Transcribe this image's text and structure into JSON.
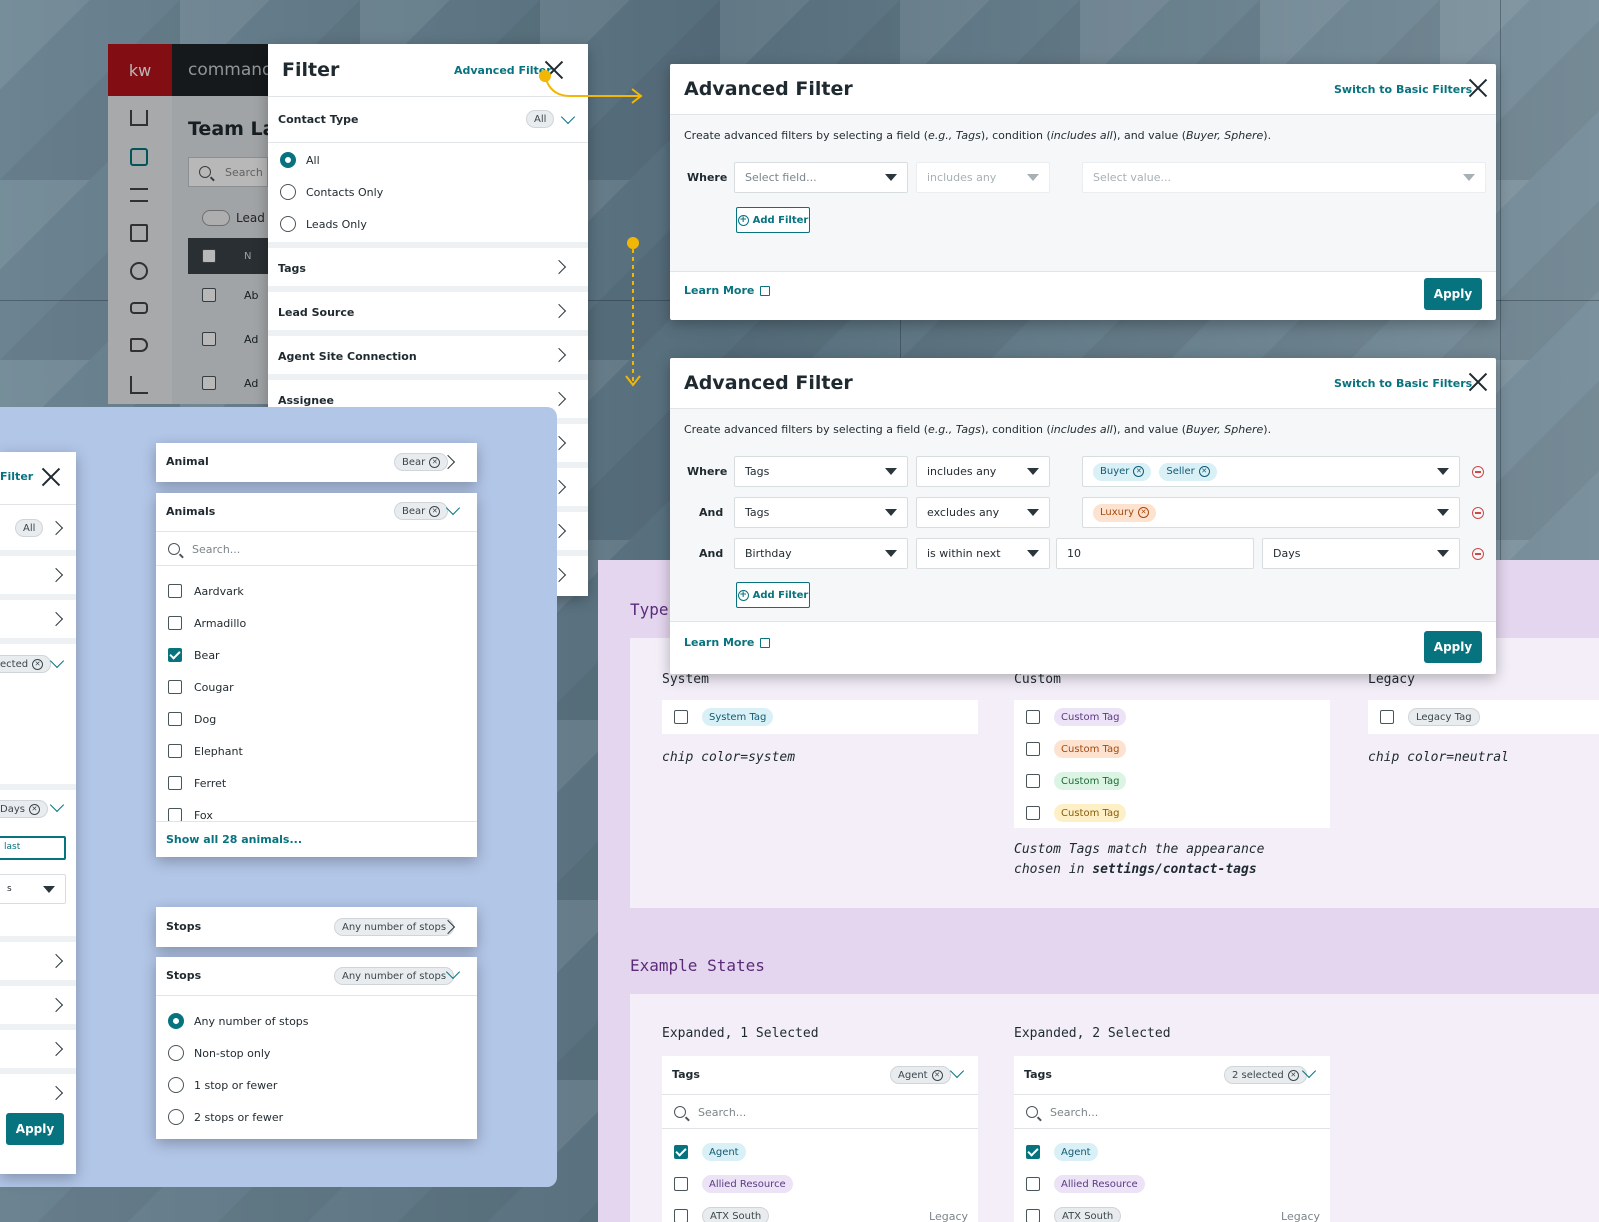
{
  "app": {
    "logo": "kw",
    "brand": "command",
    "page_title": "Team La",
    "search_placeholder": "Search",
    "lead_label": "Lead",
    "table_header_text": "N",
    "row_texts": [
      "Ab",
      "Ad",
      "Ad"
    ]
  },
  "filter_panel": {
    "title": "Filter",
    "advanced_link": "Advanced Filter",
    "contact_type": {
      "label": "Contact Type",
      "badge": "All",
      "options": [
        "All",
        "Contacts Only",
        "Leads Only"
      ],
      "selected": "All"
    },
    "sections": [
      "Tags",
      "Lead Source",
      "Agent Site Connection",
      "Assignee"
    ]
  },
  "adv_top": {
    "title": "Advanced Filter",
    "switch_link": "Switch to Basic Filters",
    "description_parts": [
      "Create advanced filters by selecting a field (",
      "e.g., Tags",
      "), condition (",
      "includes all",
      "), and value (",
      "Buyer, Sphere",
      ")."
    ],
    "where_label": "Where",
    "field_placeholder": "Select field...",
    "condition_placeholder": "includes any",
    "value_placeholder": "Select value...",
    "add_filter": "Add Filter",
    "learn_more": "Learn More",
    "apply": "Apply"
  },
  "adv_bottom": {
    "title": "Advanced Filter",
    "switch_link": "Switch to Basic Filters",
    "rows": [
      {
        "conj": "Where",
        "field": "Tags",
        "condition": "includes any",
        "chips": [
          "Buyer",
          "Seller"
        ]
      },
      {
        "conj": "And",
        "field": "Tags",
        "condition": "excludes any",
        "chips": [
          "Luxury"
        ]
      },
      {
        "conj": "And",
        "field": "Birthday",
        "condition": "is within next",
        "number": "10",
        "unit": "Days"
      }
    ],
    "add_filter": "Add Filter",
    "learn_more": "Learn More",
    "apply": "Apply"
  },
  "left_panel": {
    "title_partial": "Filter",
    "all_badge": "All",
    "selected_partial": "ected",
    "days_partial": "Days",
    "last_partial": "last",
    "s_partial": "s",
    "apply": "Apply"
  },
  "animal_collapsed": {
    "label": "Animal",
    "chip": "Bear"
  },
  "animals_expanded": {
    "label": "Animals",
    "chip": "Bear",
    "search_placeholder": "Search...",
    "items": [
      {
        "label": "Aardvark",
        "checked": false
      },
      {
        "label": "Armadillo",
        "checked": false
      },
      {
        "label": "Bear",
        "checked": true
      },
      {
        "label": "Cougar",
        "checked": false
      },
      {
        "label": "Dog",
        "checked": false
      },
      {
        "label": "Elephant",
        "checked": false
      },
      {
        "label": "Ferret",
        "checked": false
      },
      {
        "label": "Fox",
        "checked": false
      }
    ],
    "show_all": "Show all 28 animals..."
  },
  "stops_collapsed": {
    "label": "Stops",
    "chip": "Any number of stops"
  },
  "stops_expanded": {
    "label": "Stops",
    "chip": "Any number of stops",
    "options": [
      "Any number of stops",
      "Non-stop only",
      "1 stop or fewer",
      "2 stops or fewer"
    ],
    "selected": "Any number of stops"
  },
  "docs": {
    "types_heading": "Types",
    "system": {
      "heading": "System",
      "chip": "System Tag",
      "caption": "chip color=system"
    },
    "custom": {
      "heading": "Custom",
      "chips": [
        "Custom Tag",
        "Custom Tag",
        "Custom Tag",
        "Custom Tag"
      ],
      "caption_line1": "Custom Tags match the appearance",
      "caption_line2_prefix": "chosen in ",
      "caption_line2_bold": "settings/contact-tags"
    },
    "legacy": {
      "heading": "Legacy",
      "chip": "Legacy Tag",
      "caption": "chip color=neutral"
    },
    "example_heading": "Example States",
    "state1": {
      "heading": "Expanded, 1 Selected",
      "label": "Tags",
      "chip": "Agent",
      "search_placeholder": "Search...",
      "items": [
        {
          "label": "Agent",
          "checked": true
        },
        {
          "label": "Allied Resource",
          "checked": false
        },
        {
          "label": "ATX South",
          "checked": false,
          "meta": "Legacy"
        }
      ]
    },
    "state2": {
      "heading": "Expanded, 2 Selected",
      "label": "Tags",
      "chip": "2 selected",
      "search_placeholder": "Search...",
      "items": [
        {
          "label": "Agent",
          "checked": true
        },
        {
          "label": "Allied Resource",
          "checked": false
        },
        {
          "label": "ATX South",
          "checked": false,
          "meta": "Legacy"
        }
      ]
    }
  },
  "colors": {
    "accent": "#06737f",
    "annotation": "#f2b705",
    "blue_bg": "#b2c6e8",
    "purple_bg": "#e4d6ee"
  }
}
